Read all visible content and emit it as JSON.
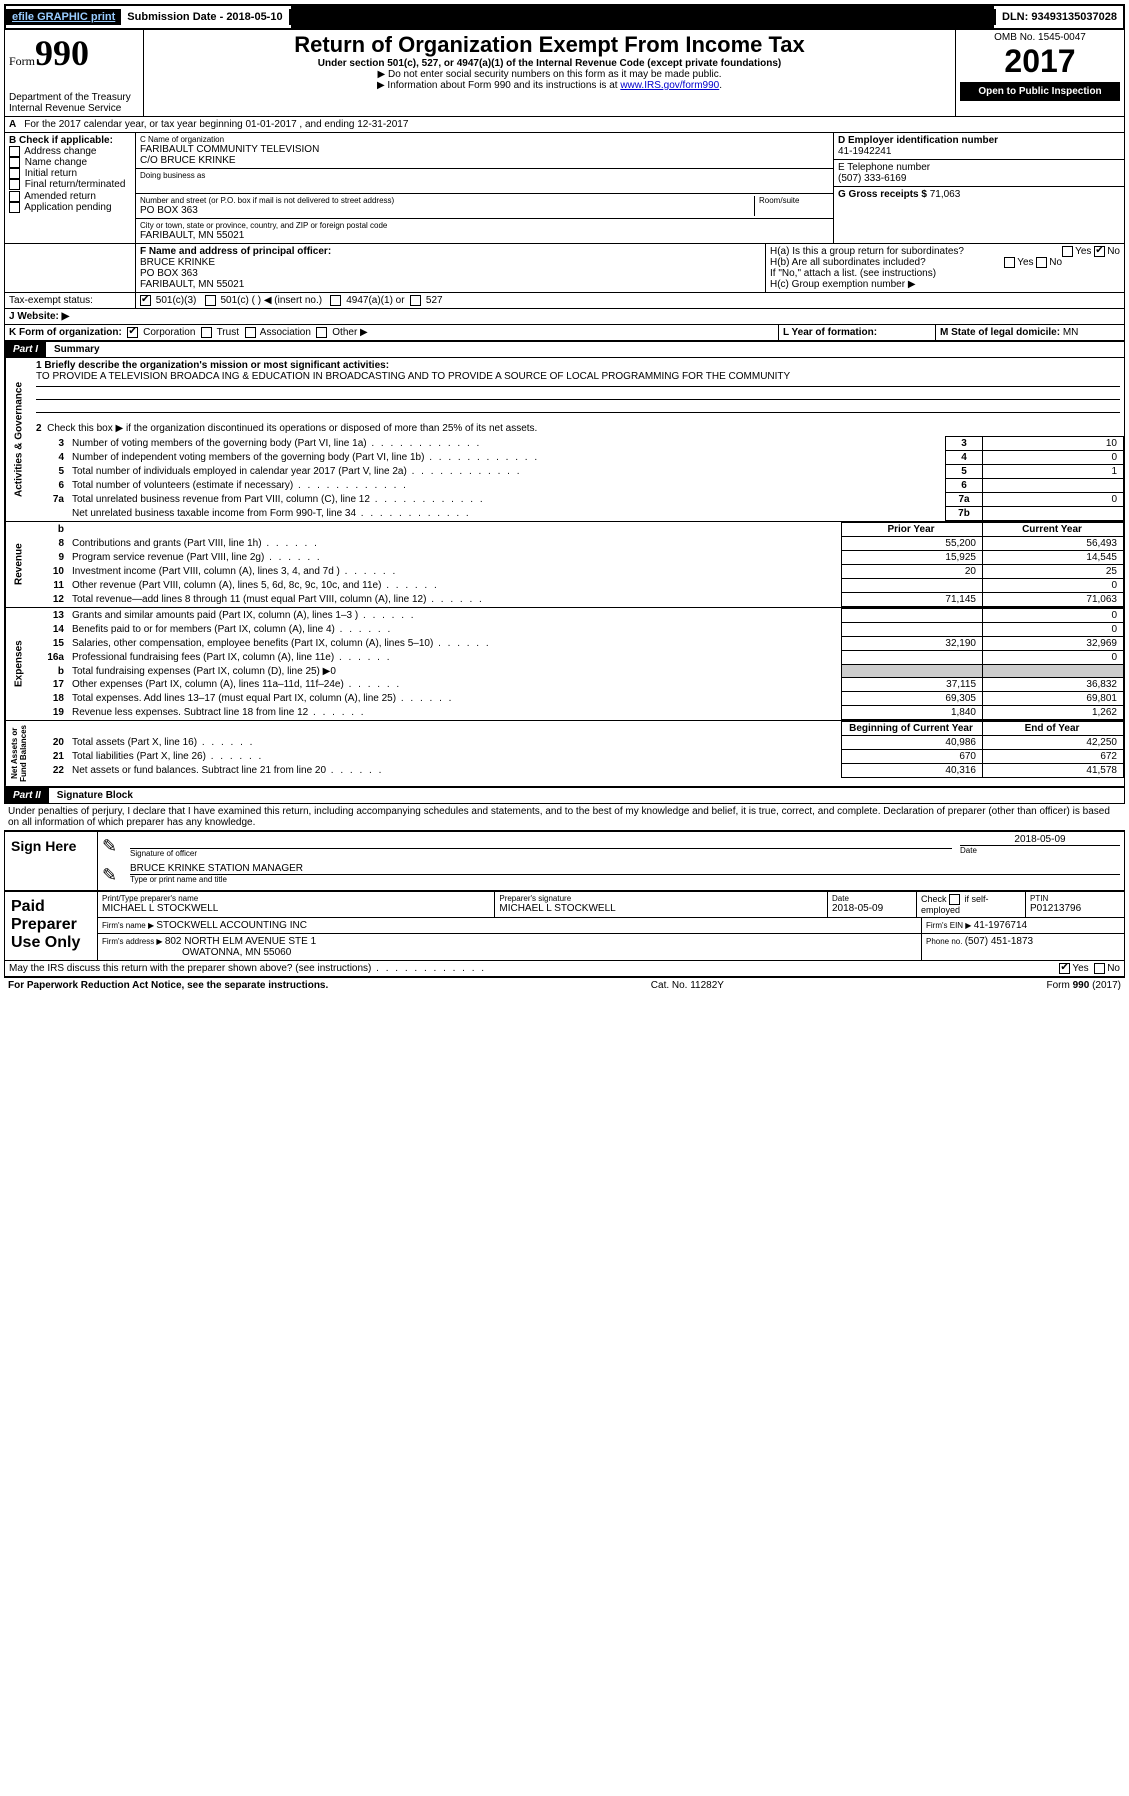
{
  "topbar": {
    "efile": "efile GRAPHIC print",
    "sub_label": "Submission Date - 2018-05-10",
    "dln": "DLN: 93493135037028"
  },
  "header": {
    "form_word": "Form",
    "form_num": "990",
    "dept": "Department of the Treasury\nInternal Revenue Service",
    "title": "Return of Organization Exempt From Income Tax",
    "subtitle": "Under section 501(c), 527, or 4947(a)(1) of the Internal Revenue Code (except private foundations)",
    "note1": "▶ Do not enter social security numbers on this form as it may be made public.",
    "note2_pre": "▶ Information about Form 990 and its instructions is at ",
    "note2_link": "www.IRS.gov/form990",
    "note2_post": ".",
    "omb": "OMB No. 1545-0047",
    "year": "2017",
    "open": "Open to Public Inspection"
  },
  "A": {
    "text": "For the 2017 calendar year, or tax year beginning 01-01-2017    , and ending 12-31-2017"
  },
  "B": {
    "label": "B Check if applicable:",
    "opts": [
      "Address change",
      "Name change",
      "Initial return",
      "Final return/terminated",
      "Amended return",
      "Application pending"
    ]
  },
  "C": {
    "label_name": "C Name of organization",
    "name": "FARIBAULT COMMUNITY TELEVISION",
    "co": "C/O BRUCE KRINKE",
    "dba_label": "Doing business as",
    "addr_label": "Number and street (or P.O. box if mail is not delivered to street address)",
    "room_label": "Room/suite",
    "addr": "PO BOX 363",
    "city_label": "City or town, state or province, country, and ZIP or foreign postal code",
    "city": "FARIBAULT, MN  55021"
  },
  "D": {
    "label": "D Employer identification number",
    "val": "41-1942241"
  },
  "E": {
    "label": "E Telephone number",
    "val": "(507) 333-6169"
  },
  "G": {
    "label": "G Gross receipts $ ",
    "val": "71,063"
  },
  "F": {
    "label": "F  Name and address of principal officer:",
    "name": "BRUCE KRINKE",
    "addr1": "PO BOX 363",
    "addr2": "FARIBAULT, MN  55021"
  },
  "H": {
    "a": "H(a)  Is this a group return for subordinates?",
    "b": "H(b)  Are all subordinates included?",
    "b_note": "If \"No,\" attach a list. (see instructions)",
    "c": "H(c)  Group exemption number ▶",
    "yes": "Yes",
    "no": "No"
  },
  "I": {
    "label": "Tax-exempt status:",
    "o1": "501(c)(3)",
    "o2": "501(c) (   ) ◀ (insert no.)",
    "o3": "4947(a)(1) or",
    "o4": "527"
  },
  "J": {
    "label": "J   Website: ▶"
  },
  "K": {
    "label": "K Form of organization:",
    "o1": "Corporation",
    "o2": "Trust",
    "o3": "Association",
    "o4": "Other ▶"
  },
  "L": {
    "label": "L Year of formation:",
    "val": ""
  },
  "M": {
    "label": "M State of legal domicile: ",
    "val": "MN"
  },
  "part1": {
    "hdr": "Part I",
    "title": "Summary"
  },
  "summary": {
    "l1_label": "1 Briefly describe the organization's mission or most significant activities:",
    "l1_text": "TO PROVIDE A TELEVISION BROADCA ING & EDUCATION IN BROADCASTING AND TO PROVIDE A SOURCE OF LOCAL PROGRAMMING FOR THE COMMUNITY",
    "l2": "Check this box ▶        if the organization discontinued its operations or disposed of more than 25% of its net assets.",
    "rows_ag": [
      {
        "n": "3",
        "t": "Number of voting members of the governing body (Part VI, line 1a)",
        "box": "3",
        "v": "10"
      },
      {
        "n": "4",
        "t": "Number of independent voting members of the governing body (Part VI, line 1b)",
        "box": "4",
        "v": "0"
      },
      {
        "n": "5",
        "t": "Total number of individuals employed in calendar year 2017 (Part V, line 2a)",
        "box": "5",
        "v": "1"
      },
      {
        "n": "6",
        "t": "Total number of volunteers (estimate if necessary)",
        "box": "6",
        "v": ""
      },
      {
        "n": "7a",
        "t": "Total unrelated business revenue from Part VIII, column (C), line 12",
        "box": "7a",
        "v": "0"
      },
      {
        "n": "",
        "t": "Net unrelated business taxable income from Form 990-T, line 34",
        "box": "7b",
        "v": ""
      }
    ],
    "col_prior": "Prior Year",
    "col_current": "Current Year",
    "rev": [
      {
        "n": "8",
        "t": "Contributions and grants (Part VIII, line 1h)",
        "p": "55,200",
        "c": "56,493"
      },
      {
        "n": "9",
        "t": "Program service revenue (Part VIII, line 2g)",
        "p": "15,925",
        "c": "14,545"
      },
      {
        "n": "10",
        "t": "Investment income (Part VIII, column (A), lines 3, 4, and 7d )",
        "p": "20",
        "c": "25"
      },
      {
        "n": "11",
        "t": "Other revenue (Part VIII, column (A), lines 5, 6d, 8c, 9c, 10c, and 11e)",
        "p": "",
        "c": "0"
      },
      {
        "n": "12",
        "t": "Total revenue—add lines 8 through 11 (must equal Part VIII, column (A), line 12)",
        "p": "71,145",
        "c": "71,063"
      }
    ],
    "exp": [
      {
        "n": "13",
        "t": "Grants and similar amounts paid (Part IX, column (A), lines 1–3 )",
        "p": "",
        "c": "0"
      },
      {
        "n": "14",
        "t": "Benefits paid to or for members (Part IX, column (A), line 4)",
        "p": "",
        "c": "0"
      },
      {
        "n": "15",
        "t": "Salaries, other compensation, employee benefits (Part IX, column (A), lines 5–10)",
        "p": "32,190",
        "c": "32,969"
      },
      {
        "n": "16a",
        "t": "Professional fundraising fees (Part IX, column (A), line 11e)",
        "p": "",
        "c": "0"
      },
      {
        "n": "b",
        "t": "Total fundraising expenses (Part IX, column (D), line 25) ▶0",
        "p": "GREY",
        "c": "GREY"
      },
      {
        "n": "17",
        "t": "Other expenses (Part IX, column (A), lines 11a–11d, 11f–24e)",
        "p": "37,115",
        "c": "36,832"
      },
      {
        "n": "18",
        "t": "Total expenses. Add lines 13–17 (must equal Part IX, column (A), line 25)",
        "p": "69,305",
        "c": "69,801"
      },
      {
        "n": "19",
        "t": "Revenue less expenses. Subtract line 18 from line 12",
        "p": "1,840",
        "c": "1,262"
      }
    ],
    "col_begin": "Beginning of Current Year",
    "col_end": "End of Year",
    "na": [
      {
        "n": "20",
        "t": "Total assets (Part X, line 16)",
        "p": "40,986",
        "c": "42,250"
      },
      {
        "n": "21",
        "t": "Total liabilities (Part X, line 26)",
        "p": "670",
        "c": "672"
      },
      {
        "n": "22",
        "t": "Net assets or fund balances. Subtract line 21 from line 20",
        "p": "40,316",
        "c": "41,578"
      }
    ],
    "vlabels": {
      "ag": "Activities & Governance",
      "rev": "Revenue",
      "exp": "Expenses",
      "na": "Net Assets or\nFund Balances"
    }
  },
  "part2": {
    "hdr": "Part II",
    "title": "Signature Block",
    "decl": "Under penalties of perjury, I declare that I have examined this return, including accompanying schedules and statements, and to the best of my knowledge and belief, it is true, correct, and complete. Declaration of preparer (other than officer) is based on all information of which preparer has any knowledge."
  },
  "sign": {
    "left": "Sign Here",
    "sig_label": "Signature of officer",
    "date_label": "Date",
    "date": "2018-05-09",
    "name": "BRUCE KRINKE  STATION MANAGER",
    "name_label": "Type or print name and title"
  },
  "paid": {
    "left": "Paid Preparer Use Only",
    "pname_label": "Print/Type preparer's name",
    "pname": "MICHAEL L STOCKWELL",
    "psig_label": "Preparer's signature",
    "psig": "MICHAEL L STOCKWELL",
    "pdate_label": "Date",
    "pdate": "2018-05-09",
    "check_label": "Check          if self-employed",
    "ptin_label": "PTIN",
    "ptin": "P01213796",
    "firm_label": "Firm's name     ▶ ",
    "firm": "STOCKWELL ACCOUNTING INC",
    "fein_label": "Firm's EIN ▶ ",
    "fein": "41-1976714",
    "faddr_label": "Firm's address ▶ ",
    "faddr1": "802 NORTH ELM AVENUE STE 1",
    "faddr2": "OWATONNA, MN  55060",
    "phone_label": "Phone no. ",
    "phone": "(507) 451-1873"
  },
  "discuss": {
    "q": "May the IRS discuss this return with the preparer shown above? (see instructions)",
    "yes": "Yes",
    "no": "No"
  },
  "footer": {
    "left": "For Paperwork Reduction Act Notice, see the separate instructions.",
    "mid": "Cat. No. 11282Y",
    "right": "Form 990 (2017)"
  },
  "colors": {
    "link": "#0000cc",
    "black": "#000000",
    "grey": "#cccccc"
  }
}
